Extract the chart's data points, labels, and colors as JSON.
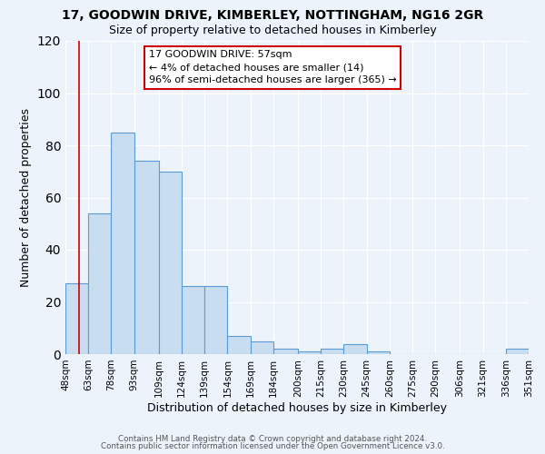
{
  "title": "17, GOODWIN DRIVE, KIMBERLEY, NOTTINGHAM, NG16 2GR",
  "subtitle": "Size of property relative to detached houses in Kimberley",
  "xlabel": "Distribution of detached houses by size in Kimberley",
  "ylabel": "Number of detached properties",
  "bins": [
    48,
    63,
    78,
    93,
    109,
    124,
    139,
    154,
    169,
    184,
    200,
    215,
    230,
    245,
    260,
    275,
    290,
    306,
    321,
    336,
    351
  ],
  "counts": [
    27,
    54,
    85,
    74,
    70,
    26,
    26,
    7,
    5,
    2,
    1,
    2,
    4,
    1,
    0,
    0,
    0,
    0,
    0,
    2
  ],
  "bin_labels": [
    "48sqm",
    "63sqm",
    "78sqm",
    "93sqm",
    "109sqm",
    "124sqm",
    "139sqm",
    "154sqm",
    "169sqm",
    "184sqm",
    "200sqm",
    "215sqm",
    "230sqm",
    "245sqm",
    "260sqm",
    "275sqm",
    "290sqm",
    "306sqm",
    "321sqm",
    "336sqm",
    "351sqm"
  ],
  "property_line_x": 57,
  "bar_facecolor": "#c9ddf0",
  "bar_edgecolor": "#5b9bd5",
  "annotation_title": "17 GOODWIN DRIVE: 57sqm",
  "annotation_line1": "← 4% of detached houses are smaller (14)",
  "annotation_line2": "96% of semi-detached houses are larger (365) →",
  "annotation_box_edgecolor": "#cc0000",
  "property_line_color": "#cc0000",
  "ylim": [
    0,
    120
  ],
  "yticks": [
    0,
    20,
    40,
    60,
    80,
    100,
    120
  ],
  "fig_facecolor": "#edf3fa",
  "ax_facecolor": "#edf3fa",
  "footer1": "Contains HM Land Registry data © Crown copyright and database right 2024.",
  "footer2": "Contains public sector information licensed under the Open Government Licence v3.0."
}
